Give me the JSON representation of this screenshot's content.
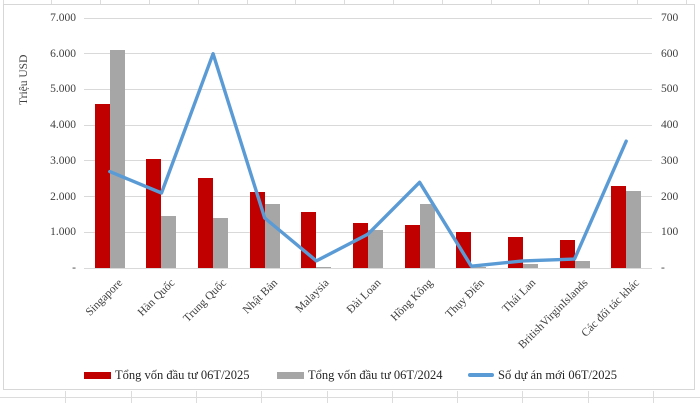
{
  "chart_data": {
    "type": "combo",
    "title": "",
    "categories": [
      "Singapore",
      "Hàn Quốc",
      "Trung Quốc",
      "Nhật Bản",
      "Malaysia",
      "Đài Loan",
      "Hồng Kông",
      "Thụy Điển",
      "Thái Lan",
      "BritishVirginIslands",
      "Các đối tác khác"
    ],
    "series": [
      {
        "name": "Tổng vốn đầu tư 06T/2025",
        "type": "bar",
        "axis": "left",
        "color": "#c00000",
        "values": [
          4600,
          3050,
          2520,
          2140,
          1560,
          1270,
          1200,
          1020,
          880,
          790,
          2300
        ]
      },
      {
        "name": "Tổng vốn đầu tư 06T/2024",
        "type": "bar",
        "axis": "left",
        "color": "#a6a6a6",
        "values": [
          6100,
          1460,
          1400,
          1780,
          40,
          1060,
          1790,
          40,
          120,
          200,
          2150
        ]
      },
      {
        "name": "Số dự án mới 06T/2025",
        "type": "line",
        "axis": "right",
        "color": "#5b9bd5",
        "values": [
          270,
          210,
          600,
          140,
          20,
          95,
          240,
          5,
          20,
          25,
          355
        ]
      }
    ],
    "y_left": {
      "title": "Triệu USD",
      "min": 0,
      "max": 7000,
      "step": 1000,
      "tick_labels": [
        "-",
        "1.000",
        "2.000",
        "3.000",
        "4.000",
        "5.000",
        "6.000",
        "7.000"
      ]
    },
    "y_right": {
      "title": "",
      "min": 0,
      "max": 700,
      "step": 100,
      "tick_labels": [
        "-",
        "100",
        "200",
        "300",
        "400",
        "500",
        "600",
        "700"
      ]
    },
    "grid": true,
    "legend_position": "bottom"
  }
}
